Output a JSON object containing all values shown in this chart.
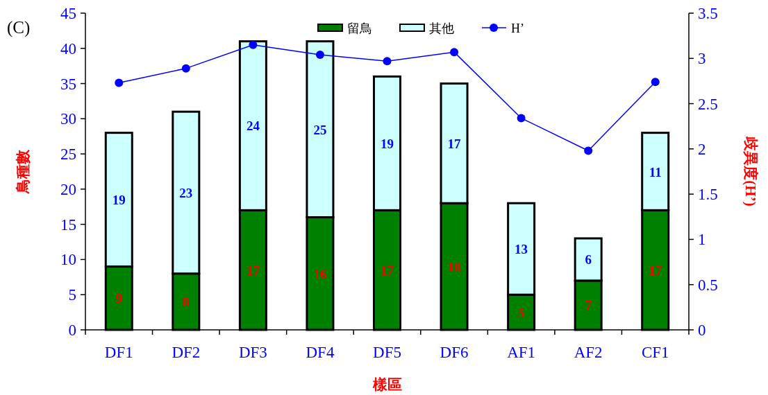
{
  "chart_data": {
    "type": "bar",
    "stacked": true,
    "categories": [
      "DF1",
      "DF2",
      "DF3",
      "DF4",
      "DF5",
      "DF6",
      "AF1",
      "AF2",
      "CF1"
    ],
    "series": [
      {
        "name": "留鳥",
        "color": "#008000",
        "values": [
          9,
          8,
          17,
          16,
          17,
          18,
          5,
          7,
          17
        ],
        "value_labels": [
          "9",
          "8",
          "17",
          "16",
          "17",
          "18",
          "5",
          "7",
          "17"
        ]
      },
      {
        "name": "其他",
        "color": "#ccffff",
        "values": [
          19,
          23,
          24,
          25,
          19,
          17,
          13,
          6,
          11
        ],
        "value_labels": [
          "19",
          "23",
          "24",
          "25",
          "19",
          "17",
          "13",
          "6",
          "11"
        ]
      },
      {
        "name": "H’",
        "type": "line",
        "axis": "y2",
        "color": "#0000ff",
        "marker": "circle",
        "values": [
          2.73,
          2.89,
          3.15,
          3.04,
          2.97,
          3.07,
          2.34,
          1.98,
          2.74
        ]
      }
    ],
    "xlabel": "樣區",
    "ylabel": "鳥種數",
    "y2label": "歧異度(H’)",
    "ylim": [
      0,
      45
    ],
    "yticks": [
      0,
      5,
      10,
      15,
      20,
      25,
      30,
      35,
      40,
      45
    ],
    "y2lim": [
      0,
      3.5
    ],
    "y2ticks": [
      0,
      0.5,
      1,
      1.5,
      2,
      2.5,
      3,
      3.5
    ],
    "legend": "top",
    "grid": false,
    "annotations": [
      "(C)"
    ]
  }
}
